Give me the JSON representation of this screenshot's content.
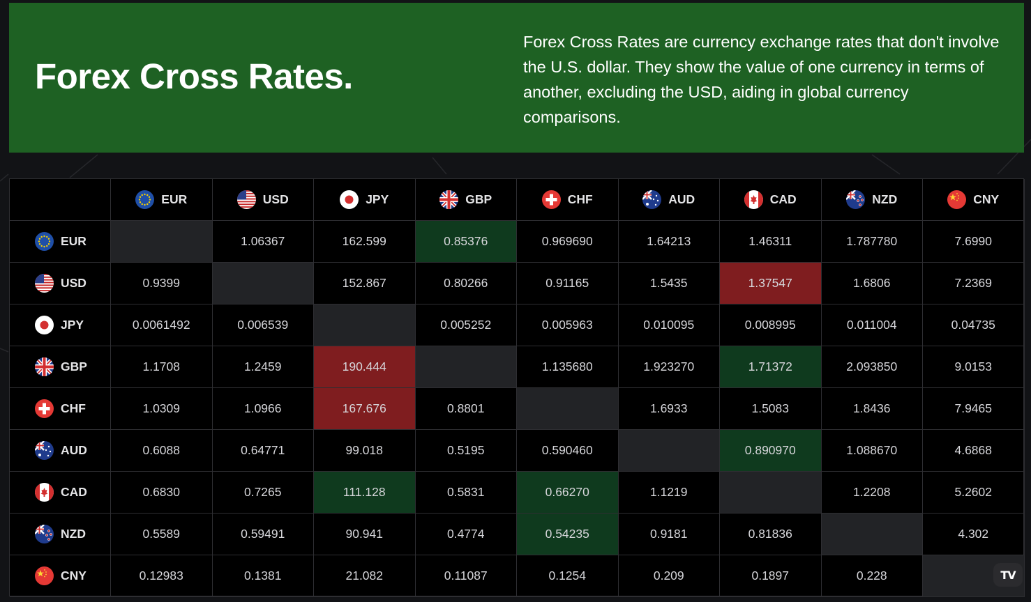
{
  "header": {
    "title": "Forex Cross Rates.",
    "description": "Forex Cross Rates are currency exchange rates that don't involve the U.S. dollar. They show the value of one currency in terms of another, excluding the USD, aiding in global currency comparisons."
  },
  "colors": {
    "banner": "#1e6123",
    "positive_highlight": "#0f3a1e",
    "negative_highlight": "#7f1d1f",
    "diagonal": "#222326"
  },
  "currencies": [
    {
      "code": "EUR",
      "icon": "eu-flag-icon"
    },
    {
      "code": "USD",
      "icon": "us-flag-icon"
    },
    {
      "code": "JPY",
      "icon": "japan-flag-icon"
    },
    {
      "code": "GBP",
      "icon": "uk-flag-icon"
    },
    {
      "code": "CHF",
      "icon": "swiss-flag-icon"
    },
    {
      "code": "AUD",
      "icon": "australia-flag-icon"
    },
    {
      "code": "CAD",
      "icon": "canada-flag-icon"
    },
    {
      "code": "NZD",
      "icon": "new-zealand-flag-icon"
    },
    {
      "code": "CNY",
      "icon": "china-flag-icon"
    }
  ],
  "rows": [
    {
      "code": "EUR",
      "cells": [
        {
          "v": "",
          "s": "blank"
        },
        {
          "v": "1.06367"
        },
        {
          "v": "162.599"
        },
        {
          "v": "0.85376",
          "s": "pos"
        },
        {
          "v": "0.969690"
        },
        {
          "v": "1.64213"
        },
        {
          "v": "1.46311"
        },
        {
          "v": "1.787780"
        },
        {
          "v": "7.6990"
        }
      ]
    },
    {
      "code": "USD",
      "cells": [
        {
          "v": "0.9399"
        },
        {
          "v": "",
          "s": "blank"
        },
        {
          "v": "152.867"
        },
        {
          "v": "0.80266"
        },
        {
          "v": "0.91165"
        },
        {
          "v": "1.5435"
        },
        {
          "v": "1.37547",
          "s": "neg"
        },
        {
          "v": "1.6806"
        },
        {
          "v": "7.2369"
        }
      ]
    },
    {
      "code": "JPY",
      "cells": [
        {
          "v": "0.0061492"
        },
        {
          "v": "0.006539"
        },
        {
          "v": "",
          "s": "blank"
        },
        {
          "v": "0.005252"
        },
        {
          "v": "0.005963"
        },
        {
          "v": "0.010095"
        },
        {
          "v": "0.008995"
        },
        {
          "v": "0.011004"
        },
        {
          "v": "0.04735"
        }
      ]
    },
    {
      "code": "GBP",
      "cells": [
        {
          "v": "1.1708"
        },
        {
          "v": "1.2459"
        },
        {
          "v": "190.444",
          "s": "neg"
        },
        {
          "v": "",
          "s": "blank"
        },
        {
          "v": "1.135680"
        },
        {
          "v": "1.923270"
        },
        {
          "v": "1.71372",
          "s": "pos"
        },
        {
          "v": "2.093850"
        },
        {
          "v": "9.0153"
        }
      ]
    },
    {
      "code": "CHF",
      "cells": [
        {
          "v": "1.0309"
        },
        {
          "v": "1.0966"
        },
        {
          "v": "167.676",
          "s": "neg"
        },
        {
          "v": "0.8801"
        },
        {
          "v": "",
          "s": "blank"
        },
        {
          "v": "1.6933"
        },
        {
          "v": "1.5083"
        },
        {
          "v": "1.8436"
        },
        {
          "v": "7.9465"
        }
      ]
    },
    {
      "code": "AUD",
      "cells": [
        {
          "v": "0.6088"
        },
        {
          "v": "0.64771"
        },
        {
          "v": "99.018"
        },
        {
          "v": "0.5195"
        },
        {
          "v": "0.590460"
        },
        {
          "v": "",
          "s": "blank"
        },
        {
          "v": "0.890970",
          "s": "pos"
        },
        {
          "v": "1.088670"
        },
        {
          "v": "4.6868"
        }
      ]
    },
    {
      "code": "CAD",
      "cells": [
        {
          "v": "0.6830"
        },
        {
          "v": "0.7265"
        },
        {
          "v": "111.128",
          "s": "pos"
        },
        {
          "v": "0.5831"
        },
        {
          "v": "0.66270",
          "s": "pos"
        },
        {
          "v": "1.1219"
        },
        {
          "v": "",
          "s": "blank"
        },
        {
          "v": "1.2208"
        },
        {
          "v": "5.2602"
        }
      ]
    },
    {
      "code": "NZD",
      "cells": [
        {
          "v": "0.5589"
        },
        {
          "v": "0.59491"
        },
        {
          "v": "90.941"
        },
        {
          "v": "0.4774"
        },
        {
          "v": "0.54235",
          "s": "pos"
        },
        {
          "v": "0.9181"
        },
        {
          "v": "0.81836"
        },
        {
          "v": "",
          "s": "blank"
        },
        {
          "v": "4.302"
        }
      ]
    },
    {
      "code": "CNY",
      "cells": [
        {
          "v": "0.12983"
        },
        {
          "v": "0.1381"
        },
        {
          "v": "21.082"
        },
        {
          "v": "0.11087"
        },
        {
          "v": "0.1254"
        },
        {
          "v": "0.209"
        },
        {
          "v": "0.1897"
        },
        {
          "v": "0.228"
        },
        {
          "v": "",
          "s": "blank"
        }
      ]
    }
  ],
  "widget_logo": {
    "text": "TV",
    "icon": "tradingview-logo-icon"
  }
}
